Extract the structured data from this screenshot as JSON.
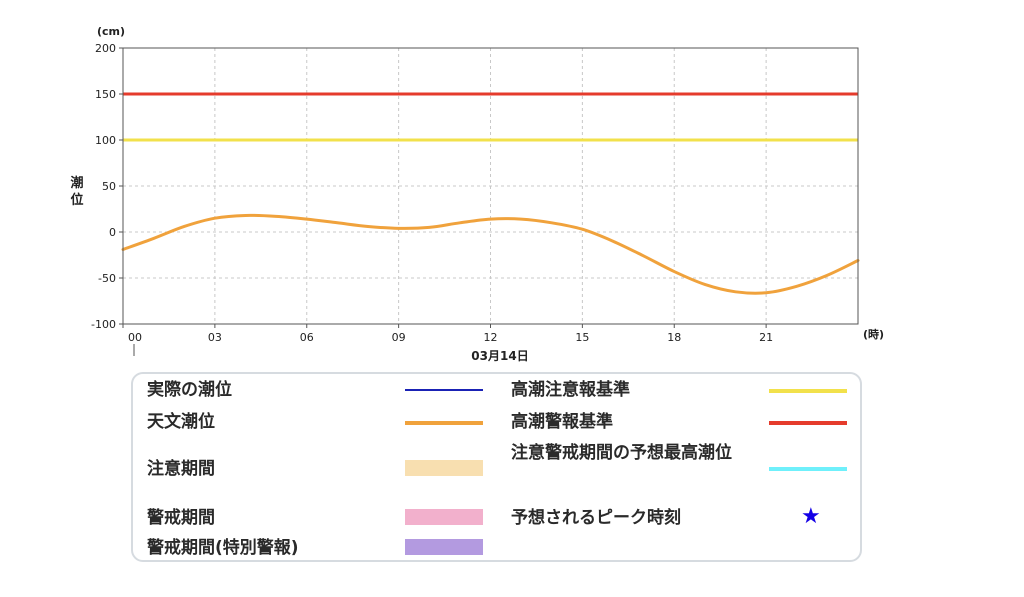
{
  "chart_data": {
    "type": "line",
    "y_unit": "(cm)",
    "x_unit": "(時)",
    "ylabel": "潮位",
    "date_label": "03月14日",
    "ylim": [
      -100,
      200
    ],
    "yticks": [
      200,
      150,
      100,
      50,
      0,
      -50,
      -100
    ],
    "xlim": [
      0,
      24
    ],
    "xticks": [
      {
        "hour": 0,
        "label": "00"
      },
      {
        "hour": 3,
        "label": "03"
      },
      {
        "hour": 6,
        "label": "06"
      },
      {
        "hour": 9,
        "label": "09"
      },
      {
        "hour": 12,
        "label": "12"
      },
      {
        "hour": 15,
        "label": "15"
      },
      {
        "hour": 18,
        "label": "18"
      },
      {
        "hour": 21,
        "label": "21"
      }
    ],
    "grid": true,
    "thresholds": [
      {
        "name": "高潮警報基準",
        "value": 150,
        "color": "#e53b2c"
      },
      {
        "name": "高潮注意報基準",
        "value": 100,
        "color": "#f2e14b"
      }
    ],
    "series": [
      {
        "name": "天文潮位",
        "color": "#f0a23c",
        "points": [
          [
            0,
            -19
          ],
          [
            1,
            -7
          ],
          [
            2,
            6
          ],
          [
            3,
            15
          ],
          [
            4,
            18
          ],
          [
            5,
            17
          ],
          [
            6,
            14
          ],
          [
            7,
            10
          ],
          [
            8,
            6
          ],
          [
            9,
            4
          ],
          [
            10,
            5
          ],
          [
            11,
            10
          ],
          [
            12,
            14
          ],
          [
            13,
            14
          ],
          [
            14,
            10
          ],
          [
            15,
            3
          ],
          [
            16,
            -10
          ],
          [
            17,
            -26
          ],
          [
            18,
            -43
          ],
          [
            19,
            -57
          ],
          [
            20,
            -65
          ],
          [
            21,
            -66
          ],
          [
            22,
            -59
          ],
          [
            23,
            -47
          ],
          [
            24,
            -31
          ]
        ]
      }
    ]
  },
  "legend": {
    "items": [
      {
        "label": "実際の潮位",
        "kind": "line",
        "color": "#1a22b5"
      },
      {
        "label": "天文潮位",
        "kind": "line",
        "color": "#f0a23c"
      },
      {
        "label": "注意期間",
        "kind": "band",
        "color": "#f8dfb0"
      },
      {
        "label": "警戒期間",
        "kind": "band",
        "color": "#f2b0cc"
      },
      {
        "label": "警戒期間(特別警報)",
        "kind": "band",
        "color": "#b39ae0"
      },
      {
        "label": "高潮注意報基準",
        "kind": "line",
        "color": "#f2e14b"
      },
      {
        "label": "高潮警報基準",
        "kind": "line",
        "color": "#e53b2c"
      },
      {
        "label": "注意警戒期間の予想最高潮位",
        "kind": "line",
        "color": "#6ff0fb"
      },
      {
        "label": "予想されるピーク時刻",
        "kind": "star",
        "color": "#1400e6",
        "symbol": "★"
      }
    ]
  }
}
